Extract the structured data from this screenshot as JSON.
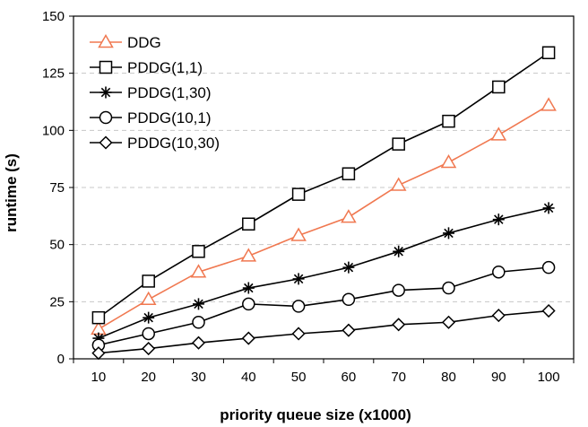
{
  "chart_data": {
    "type": "line",
    "title": "",
    "xlabel": "priority queue size (x1000)",
    "ylabel": "runtime (s)",
    "x": [
      10,
      20,
      30,
      40,
      50,
      60,
      70,
      80,
      90,
      100
    ],
    "ylim": [
      0,
      150
    ],
    "yticks": [
      0,
      25,
      50,
      75,
      100,
      125,
      150
    ],
    "grid": "horizontal dashed",
    "legend_position": "top-left",
    "series": [
      {
        "name": "DDG",
        "marker": "triangle",
        "color": "#f07850",
        "values": [
          13,
          26,
          38,
          45,
          54,
          62,
          76,
          86,
          98,
          111
        ]
      },
      {
        "name": "PDDG(1,1)",
        "marker": "square",
        "color": "#000000",
        "values": [
          18,
          34,
          47,
          59,
          72,
          81,
          94,
          104,
          119,
          134
        ]
      },
      {
        "name": "PDDG(1,30)",
        "marker": "asterisk",
        "color": "#000000",
        "values": [
          9,
          18,
          24,
          31,
          35,
          40,
          47,
          55,
          61,
          66
        ]
      },
      {
        "name": "PDDG(10,1)",
        "marker": "circle",
        "color": "#000000",
        "values": [
          6,
          11,
          16,
          24,
          23,
          26,
          30,
          31,
          38,
          40
        ]
      },
      {
        "name": "PDDG(10,30)",
        "marker": "diamond",
        "color": "#000000",
        "values": [
          2.5,
          4.5,
          7,
          9,
          11,
          12.5,
          15,
          16,
          19,
          21
        ]
      }
    ]
  }
}
